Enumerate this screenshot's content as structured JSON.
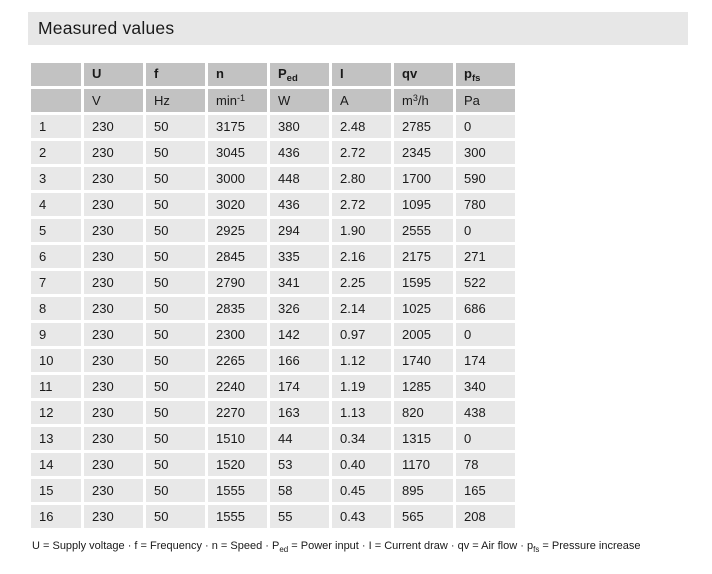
{
  "page": {
    "title": "Measured values"
  },
  "colors": {
    "title_bar_bg": "#e7e7e7",
    "header_cell_bg": "#c2c2c2",
    "data_cell_bg": "#e8e8e8",
    "text": "#1a1a1a"
  },
  "table": {
    "header": {
      "names": [
        {
          "main": "U",
          "sub": ""
        },
        {
          "main": "f",
          "sub": ""
        },
        {
          "main": "n",
          "sub": ""
        },
        {
          "main": "P",
          "sub": "ed"
        },
        {
          "main": "I",
          "sub": ""
        },
        {
          "main": "qv",
          "sub": ""
        },
        {
          "main": "p",
          "sub": "fs"
        }
      ],
      "units": [
        {
          "pre": "V",
          "sup": "",
          "post": ""
        },
        {
          "pre": "Hz",
          "sup": "",
          "post": ""
        },
        {
          "pre": "min",
          "sup": "-1",
          "post": ""
        },
        {
          "pre": "W",
          "sup": "",
          "post": ""
        },
        {
          "pre": "A",
          "sup": "",
          "post": ""
        },
        {
          "pre": "m",
          "sup": "3",
          "post": "/h"
        },
        {
          "pre": "Pa",
          "sup": "",
          "post": ""
        }
      ]
    },
    "rows": [
      {
        "no": "1",
        "U": "230",
        "f": "50",
        "n": "3175",
        "Ped": "380",
        "I": "2.48",
        "qv": "2785",
        "pfs": "0"
      },
      {
        "no": "2",
        "U": "230",
        "f": "50",
        "n": "3045",
        "Ped": "436",
        "I": "2.72",
        "qv": "2345",
        "pfs": "300"
      },
      {
        "no": "3",
        "U": "230",
        "f": "50",
        "n": "3000",
        "Ped": "448",
        "I": "2.80",
        "qv": "1700",
        "pfs": "590"
      },
      {
        "no": "4",
        "U": "230",
        "f": "50",
        "n": "3020",
        "Ped": "436",
        "I": "2.72",
        "qv": "1095",
        "pfs": "780"
      },
      {
        "no": "5",
        "U": "230",
        "f": "50",
        "n": "2925",
        "Ped": "294",
        "I": "1.90",
        "qv": "2555",
        "pfs": "0"
      },
      {
        "no": "6",
        "U": "230",
        "f": "50",
        "n": "2845",
        "Ped": "335",
        "I": "2.16",
        "qv": "2175",
        "pfs": "271"
      },
      {
        "no": "7",
        "U": "230",
        "f": "50",
        "n": "2790",
        "Ped": "341",
        "I": "2.25",
        "qv": "1595",
        "pfs": "522"
      },
      {
        "no": "8",
        "U": "230",
        "f": "50",
        "n": "2835",
        "Ped": "326",
        "I": "2.14",
        "qv": "1025",
        "pfs": "686"
      },
      {
        "no": "9",
        "U": "230",
        "f": "50",
        "n": "2300",
        "Ped": "142",
        "I": "0.97",
        "qv": "2005",
        "pfs": "0"
      },
      {
        "no": "10",
        "U": "230",
        "f": "50",
        "n": "2265",
        "Ped": "166",
        "I": "1.12",
        "qv": "1740",
        "pfs": "174"
      },
      {
        "no": "11",
        "U": "230",
        "f": "50",
        "n": "2240",
        "Ped": "174",
        "I": "1.19",
        "qv": "1285",
        "pfs": "340"
      },
      {
        "no": "12",
        "U": "230",
        "f": "50",
        "n": "2270",
        "Ped": "163",
        "I": "1.13",
        "qv": "820",
        "pfs": "438"
      },
      {
        "no": "13",
        "U": "230",
        "f": "50",
        "n": "1510",
        "Ped": "44",
        "I": "0.34",
        "qv": "1315",
        "pfs": "0"
      },
      {
        "no": "14",
        "U": "230",
        "f": "50",
        "n": "1520",
        "Ped": "53",
        "I": "0.40",
        "qv": "1170",
        "pfs": "78"
      },
      {
        "no": "15",
        "U": "230",
        "f": "50",
        "n": "1555",
        "Ped": "58",
        "I": "0.45",
        "qv": "895",
        "pfs": "165"
      },
      {
        "no": "16",
        "U": "230",
        "f": "50",
        "n": "1555",
        "Ped": "55",
        "I": "0.43",
        "qv": "565",
        "pfs": "208"
      }
    ]
  },
  "legend": {
    "tokens": [
      {
        "text": "U = Supply voltage · f = Frequency · n = Speed · P",
        "sub": false
      },
      {
        "text": "ed",
        "sub": true
      },
      {
        "text": " = Power input · I = Current draw · qv = Air flow · p",
        "sub": false
      },
      {
        "text": "fs",
        "sub": true
      },
      {
        "text": " = Pressure increase",
        "sub": false
      }
    ]
  }
}
